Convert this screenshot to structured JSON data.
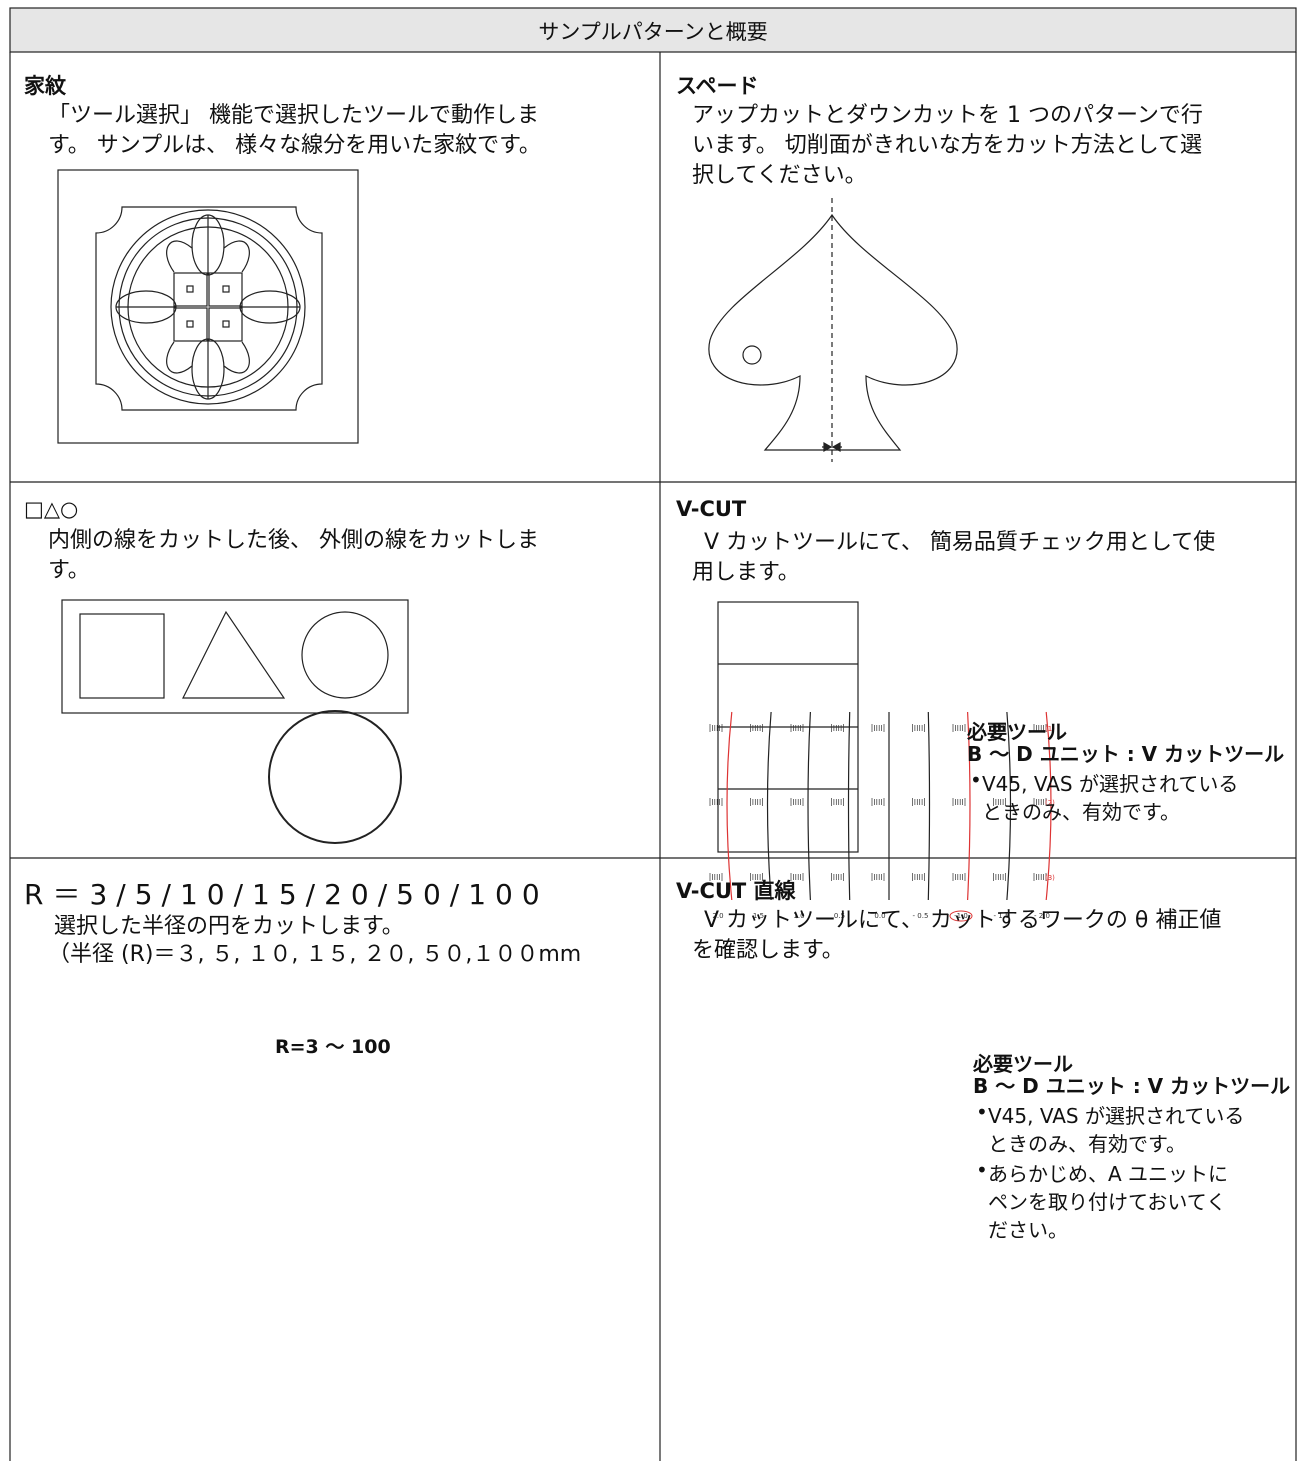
{
  "header": {
    "title": "サンプルパターンと概要"
  },
  "cells": [
    {
      "title": "家紋",
      "description": [
        "「ツール選択」 機能で選択したツールで動作しま",
        "す。 サンプルは、 様々な線分を用いた家紋です。"
      ]
    },
    {
      "title": "スペード",
      "description": [
        "アップカットとダウンカットを 1 つのパターンで行",
        "います。 切削面がきれいな方をカット方法として選",
        "択してください。"
      ]
    },
    {
      "title": "□△○",
      "description": [
        "内側の線をカットした後、 外側の線をカットしま",
        "す。"
      ]
    },
    {
      "title": "V-CUT",
      "description": [
        "V カットツールにて、 簡易品質チェック用として使",
        "用します。"
      ],
      "notes": {
        "title": "必要ツール",
        "tool": "B ～ D ユニット : V カットツール",
        "bullets": [
          [
            "V45, VAS が選択されている",
            "ときのみ、有効です。"
          ]
        ]
      }
    },
    {
      "title": "R＝3/5/10/15/20/50/100",
      "description": [
        "選択した半径の円をカットします。",
        "（半径 (R)＝３, ５, １０, １５, ２０, ５０,１００mm"
      ],
      "caption": "R=3 ～ 100"
    },
    {
      "title": "V-CUT 直線",
      "description": [
        "V カットツールにて、 カットするワークの θ 補正値",
        "を確認します。"
      ],
      "diagram": {
        "column_labels": [
          "2.0",
          "1.5",
          "1.0",
          "0.5",
          "0.0",
          "- 0.5",
          "-1.0",
          "- 1.5",
          "- 2.0"
        ],
        "row_labels": [
          "(1)",
          "(2)",
          "(3)"
        ]
      },
      "notes": {
        "title": "必要ツール",
        "tool": "B ～ D ユニット : V カットツール",
        "bullets": [
          [
            "V45, VAS が選択されている",
            "ときのみ、有効です。"
          ],
          [
            "あらかじめ、A ユニットに",
            "ペンを取り付けておいてく",
            "ださい。"
          ]
        ]
      }
    }
  ]
}
